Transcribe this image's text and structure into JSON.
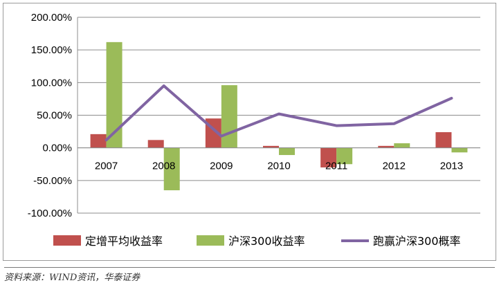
{
  "chart_data": {
    "type": "bar",
    "categories": [
      "2007",
      "2008",
      "2009",
      "2010",
      "2011",
      "2012",
      "2013"
    ],
    "series": [
      {
        "name": "定增平均收益率",
        "kind": "bar",
        "color": "#c0504d",
        "values": [
          21,
          12,
          45,
          3,
          -30,
          3,
          24
        ]
      },
      {
        "name": "沪深300收益率",
        "kind": "bar",
        "color": "#9bbb59",
        "values": [
          162,
          -65,
          96,
          -11,
          -25,
          7,
          -7
        ]
      },
      {
        "name": "跑赢沪深300概率",
        "kind": "line",
        "color": "#8064a2",
        "values": [
          12,
          95,
          18,
          52,
          34,
          37,
          76
        ]
      }
    ],
    "ylim": [
      -100,
      200
    ],
    "yticks": [
      200,
      150,
      100,
      50,
      0,
      -50,
      -100
    ],
    "ytick_labels": [
      "200.00%",
      "150.00%",
      "100.00%",
      "50.00%",
      "0.00%",
      "-50.00%",
      "-100.00%"
    ],
    "grid": true,
    "legend_position": "bottom",
    "title": "",
    "xlabel": "",
    "ylabel": ""
  },
  "source_text": "资料来源：WIND资讯，华泰证券"
}
